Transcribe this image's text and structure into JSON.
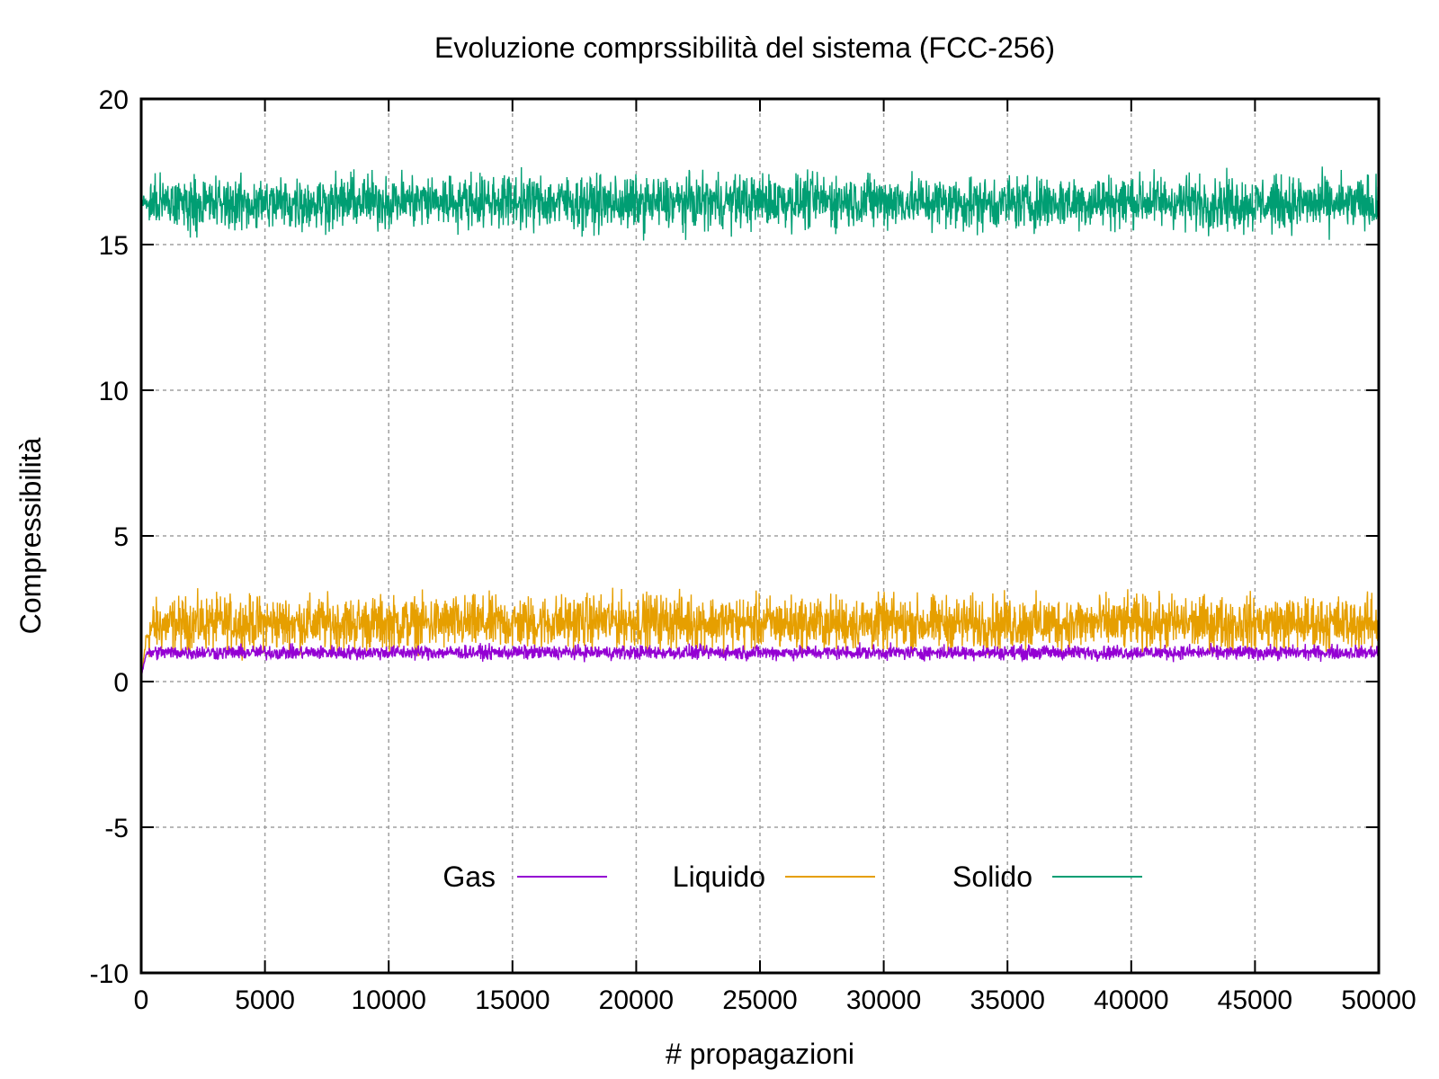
{
  "chart_data": {
    "type": "line",
    "title": "Evoluzione comprssibilità del sistema (FCC-256)",
    "xlabel": "# propagazioni",
    "ylabel": "Compressibilità",
    "xlim": [
      0,
      50000
    ],
    "ylim": [
      -10,
      20
    ],
    "xticks": [
      "0",
      "5000",
      "10000",
      "15000",
      "20000",
      "25000",
      "30000",
      "35000",
      "40000",
      "45000",
      "50000"
    ],
    "yticks": [
      "-10",
      "-5",
      "0",
      "5",
      "10",
      "15",
      "20"
    ],
    "grid": true,
    "legend_position": "bottom-center",
    "series": [
      {
        "name": "Gas",
        "color": "#9400d3",
        "x": [
          0,
          200,
          500,
          2000,
          5000,
          10000,
          15000,
          20000,
          25000,
          30000,
          35000,
          40000,
          45000,
          50000
        ],
        "y": [
          0.2,
          0.95,
          1.0,
          1.0,
          1.0,
          1.0,
          1.0,
          1.0,
          1.0,
          1.0,
          1.0,
          1.0,
          1.0,
          1.0
        ]
      },
      {
        "name": "Liquido",
        "color": "#e69f00",
        "x": [
          0,
          200,
          500,
          2000,
          5000,
          10000,
          15000,
          20000,
          25000,
          30000,
          35000,
          40000,
          45000,
          50000
        ],
        "y": [
          0.0,
          1.5,
          1.9,
          2.0,
          2.0,
          2.0,
          2.0,
          2.1,
          2.0,
          2.0,
          2.0,
          2.0,
          2.0,
          2.0
        ]
      },
      {
        "name": "Solido",
        "color": "#009e73",
        "x": [
          0,
          200,
          500,
          2000,
          5000,
          10000,
          15000,
          20000,
          25000,
          30000,
          35000,
          40000,
          45000,
          50000
        ],
        "y": [
          16.5,
          16.4,
          16.4,
          16.4,
          16.4,
          16.5,
          16.5,
          16.4,
          16.5,
          16.5,
          16.4,
          16.5,
          16.4,
          16.4
        ]
      }
    ]
  }
}
